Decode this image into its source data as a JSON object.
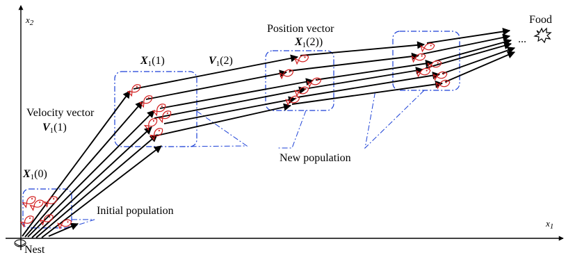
{
  "axes": {
    "x_symbol": "x",
    "x_sub": "1",
    "y_symbol": "x",
    "y_sub": "2"
  },
  "labels": {
    "nest": "Nest",
    "food": "Food",
    "ellipsis": "...",
    "initial_population": "Initial population",
    "new_population": "New population",
    "velocity_vector": "Velocity vector",
    "position_vector": "Position vector",
    "v1_1": {
      "sym": "V",
      "sub": "1",
      "arg": "(1)"
    },
    "x1_0": {
      "sym": "X",
      "sub": "1",
      "arg": "(0)"
    },
    "x1_1": {
      "sym": "X",
      "sub": "1",
      "arg": "(1)"
    },
    "v1_2": {
      "sym": "V",
      "sub": "1",
      "arg": "(2)"
    },
    "x1_2": {
      "sym": "X",
      "sub": "1",
      "arg": "(2))"
    }
  },
  "colors": {
    "ink": "#000000",
    "population_box": "#1a3fd6",
    "fish": "#d21e1e",
    "burst": "#ffffff"
  },
  "icons": {
    "fish": "fish-icon",
    "burst": "food-burst-icon",
    "nest": "nest-icon"
  }
}
